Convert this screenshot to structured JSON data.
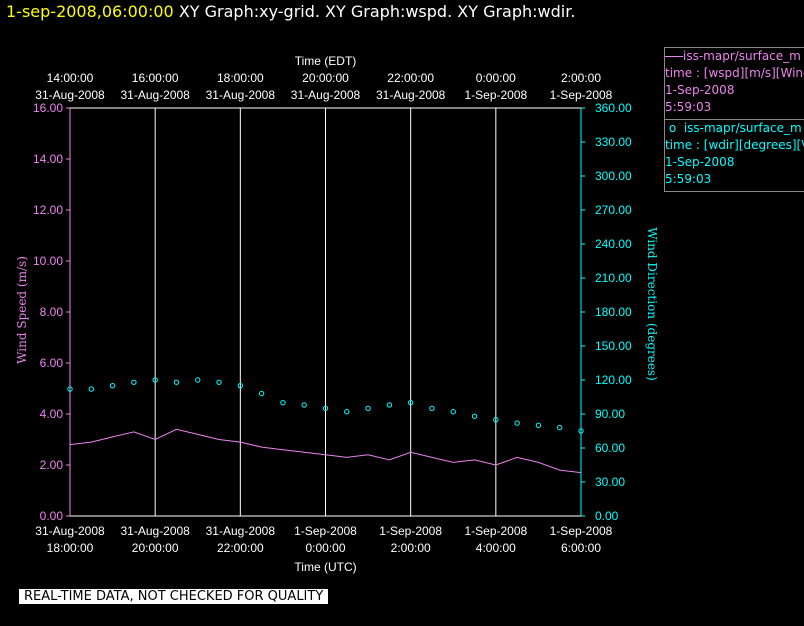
{
  "header": {
    "timestamp": "1-sep-2008,06:00:00",
    "graphs": "XY Graph:xy-grid.  XY Graph:wspd.  XY Graph:wdir."
  },
  "footer": {
    "note": "REAL-TIME DATA, NOT CHECKED FOR QUALITY"
  },
  "legend": [
    {
      "line1": "iss-mapr/surface_m",
      "line2": "time : [wspd][m/s][Wind",
      "line3": "1-Sep-2008",
      "line4": "5:59:03"
    },
    {
      "line1": "iss-mapr/surface_m",
      "line2": "time : [wdir][degrees][V",
      "line3": "1-Sep-2008",
      "line4": "5:59:03"
    }
  ],
  "colors": {
    "wspd": "#ee82ee",
    "wdir": "#00ffff",
    "grid": "#ffffff",
    "axis_left": "#ee82ee",
    "axis_right": "#00ffff",
    "header_time": "#ffff00"
  },
  "chart_data": {
    "type": "scatter",
    "x_range": [
      "2008-08-31T18:00:00Z",
      "2008-09-01T06:00:00Z"
    ],
    "top_xlabel": "Time (EDT)",
    "bottom_xlabel": "Time (UTC)",
    "top_ticks": [
      [
        "14:00:00",
        "31-Aug-2008"
      ],
      [
        "16:00:00",
        "31-Aug-2008"
      ],
      [
        "18:00:00",
        "31-Aug-2008"
      ],
      [
        "20:00:00",
        "31-Aug-2008"
      ],
      [
        "22:00:00",
        "31-Aug-2008"
      ],
      [
        "0:00:00",
        "1-Sep-2008"
      ],
      [
        "2:00:00",
        "1-Sep-2008"
      ]
    ],
    "bottom_ticks": [
      [
        "31-Aug-2008",
        "18:00:00"
      ],
      [
        "31-Aug-2008",
        "20:00:00"
      ],
      [
        "31-Aug-2008",
        "22:00:00"
      ],
      [
        "1-Sep-2008",
        "0:00:00"
      ],
      [
        "1-Sep-2008",
        "2:00:00"
      ],
      [
        "1-Sep-2008",
        "4:00:00"
      ],
      [
        "1-Sep-2008",
        "6:00:00"
      ]
    ],
    "ylabel_left": "Wind Speed (m/s)",
    "ylim_left": [
      0,
      16
    ],
    "yticks_left": [
      "0.00",
      "2.00",
      "4.00",
      "6.00",
      "8.00",
      "10.00",
      "12.00",
      "14.00",
      "16.00"
    ],
    "ylabel_right": "Wind Direction (degrees)",
    "ylim_right": [
      0,
      360
    ],
    "yticks_right": [
      "0.00",
      "30.00",
      "60.00",
      "90.00",
      "120.00",
      "150.00",
      "180.00",
      "210.00",
      "240.00",
      "270.00",
      "300.00",
      "330.00",
      "360.00"
    ],
    "grid": "vertical",
    "series": [
      {
        "name": "iss-mapr/surface_m time : [wspd][m/s]",
        "axis": "left",
        "style": "line",
        "hours": [
          0,
          0.5,
          1,
          1.5,
          2,
          2.5,
          3,
          3.5,
          4,
          4.5,
          5,
          5.5,
          6,
          6.5,
          7,
          7.5,
          8,
          8.5,
          9,
          9.5,
          10,
          10.5,
          11,
          11.5,
          12
        ],
        "values": [
          2.8,
          2.9,
          3.1,
          3.3,
          3.0,
          3.4,
          3.2,
          3.0,
          2.9,
          2.7,
          2.6,
          2.5,
          2.4,
          2.3,
          2.4,
          2.2,
          2.5,
          2.3,
          2.1,
          2.2,
          2.0,
          2.3,
          2.1,
          1.8,
          1.7
        ]
      },
      {
        "name": "iss-mapr/surface_m time : [wdir][degrees]",
        "axis": "right",
        "style": "circles",
        "hours": [
          0,
          0.5,
          1,
          1.5,
          2,
          2.5,
          3,
          3.5,
          4,
          4.5,
          5,
          5.5,
          6,
          6.5,
          7,
          7.5,
          8,
          8.5,
          9,
          9.5,
          10,
          10.5,
          11,
          11.5,
          12
        ],
        "values": [
          112,
          112,
          115,
          118,
          120,
          118,
          120,
          118,
          115,
          108,
          100,
          98,
          95,
          92,
          95,
          98,
          100,
          95,
          92,
          88,
          85,
          82,
          80,
          78,
          75
        ]
      }
    ]
  }
}
